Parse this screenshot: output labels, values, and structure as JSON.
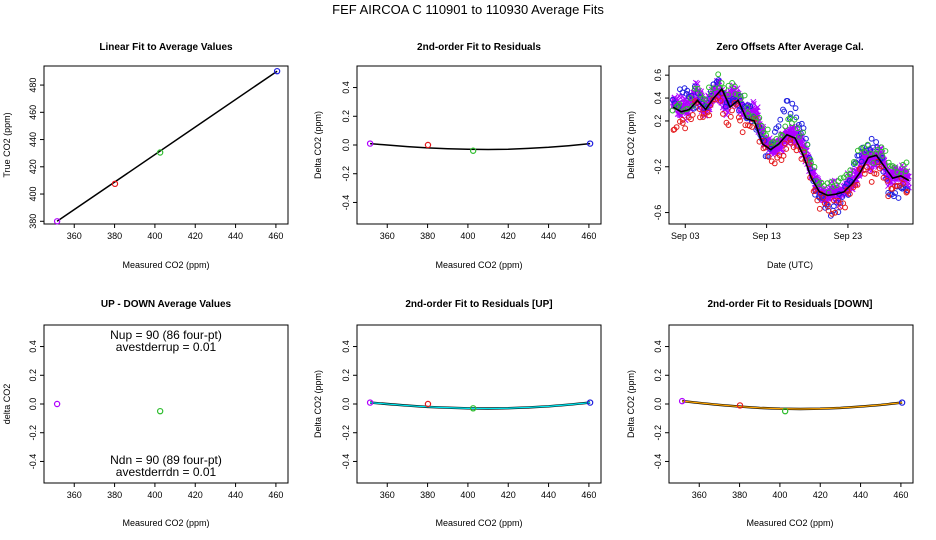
{
  "figure_title": "FEF   AIRCOA C   110901 to 110930   Average Fits",
  "colors": {
    "black": "#000000",
    "red": "#e41a1c",
    "green": "#2ebd2e",
    "blue": "#1f1fe0",
    "purple": "#b000ff",
    "cyan": "#00e5ee",
    "orange": "#ffa500"
  },
  "chart_data": [
    {
      "id": "p1",
      "type": "scatter",
      "title": "Linear Fit to Average Values",
      "xlabel": "Measured CO2 (ppm)",
      "ylabel": "True CO2 (ppm)",
      "xlim": [
        345,
        466
      ],
      "ylim": [
        378,
        494
      ],
      "xticks": [
        360,
        380,
        400,
        420,
        440,
        460
      ],
      "yticks": [
        380,
        400,
        420,
        440,
        460,
        480
      ],
      "points": [
        {
          "x": 351.5,
          "y": 380.0,
          "color": "purple"
        },
        {
          "x": 380.2,
          "y": 407.5,
          "color": "red"
        },
        {
          "x": 402.6,
          "y": 430.5,
          "color": "green"
        },
        {
          "x": 460.6,
          "y": 490.2,
          "color": "blue"
        }
      ],
      "fit_lines": [
        {
          "color": "black",
          "x": [
            351.5,
            460.6
          ],
          "y": [
            380.0,
            490.2
          ]
        }
      ]
    },
    {
      "id": "p2",
      "type": "scatter",
      "title": "2nd-order Fit to Residuals",
      "xlabel": "Measured CO2 (ppm)",
      "ylabel": "Delta CO2 (ppm)",
      "xlim": [
        345,
        466
      ],
      "ylim": [
        -0.55,
        0.55
      ],
      "xticks": [
        360,
        380,
        400,
        420,
        440,
        460
      ],
      "yticks": [
        -0.4,
        -0.2,
        0.0,
        0.2,
        0.4
      ],
      "yticklabels": [
        "-0.4",
        "-0.2",
        "0.0",
        "0.2",
        "0.4"
      ],
      "points": [
        {
          "x": 351.5,
          "y": 0.01,
          "color": "purple"
        },
        {
          "x": 380.2,
          "y": 0.0,
          "color": "red"
        },
        {
          "x": 402.6,
          "y": -0.04,
          "color": "green"
        },
        {
          "x": 460.6,
          "y": 0.01,
          "color": "blue"
        }
      ],
      "fit_lines": [
        {
          "color": "black",
          "x": [
            351.5,
            360,
            370,
            380,
            390,
            400,
            410,
            420,
            430,
            440,
            450,
            460.6
          ],
          "y": [
            0.01,
            0.0,
            -0.011,
            -0.02,
            -0.026,
            -0.03,
            -0.031,
            -0.029,
            -0.024,
            -0.016,
            -0.005,
            0.01
          ]
        }
      ]
    },
    {
      "id": "p3",
      "type": "scatter",
      "title": "Zero Offsets After Average Cal.",
      "xlabel": "Date (UTC)",
      "ylabel": "Delta CO2 (ppm)",
      "xlim": [
        0,
        30
      ],
      "ylim": [
        -0.7,
        0.68
      ],
      "xticks": [
        2,
        12,
        22
      ],
      "xticklabels": [
        "Sep 03",
        "Sep 13",
        "Sep 23"
      ],
      "yticks": [
        -0.6,
        -0.2,
        0.2,
        0.4,
        0.6
      ],
      "yticklabels": [
        "-0.6",
        "-0.2",
        "0.2",
        "0.4",
        "0.6"
      ],
      "dense_series": [
        {
          "name": "purple",
          "color": "purple",
          "step": 0.06,
          "jitter": 0.07,
          "size": 2.6,
          "cross": true,
          "x": [
            0.5,
            2,
            3.5,
            4.5,
            6,
            7,
            8,
            9.5,
            10.5,
            12,
            13,
            15,
            16,
            17,
            18,
            19,
            20,
            21,
            22,
            23,
            24,
            25,
            26,
            27,
            28,
            29.5
          ],
          "y": [
            0.35,
            0.3,
            0.45,
            0.3,
            0.5,
            0.35,
            0.45,
            0.25,
            0.3,
            0.0,
            -0.05,
            0.1,
            0.05,
            -0.1,
            -0.35,
            -0.45,
            -0.42,
            -0.45,
            -0.35,
            -0.3,
            -0.1,
            -0.15,
            -0.1,
            -0.3,
            -0.25,
            -0.3
          ]
        },
        {
          "name": "blue",
          "color": "blue",
          "step": 0.22,
          "jitter": 0.09,
          "size": 2.4,
          "x": [
            0.5,
            2,
            3.5,
            4.5,
            6,
            7,
            8,
            9.5,
            10.5,
            12,
            13,
            14,
            15,
            16,
            17,
            18,
            19,
            20,
            21,
            22,
            23,
            24,
            25,
            26,
            27,
            28,
            29.5
          ],
          "y": [
            0.4,
            0.45,
            0.4,
            0.3,
            0.55,
            0.35,
            0.4,
            0.3,
            0.25,
            -0.05,
            0.1,
            0.3,
            0.35,
            0.2,
            -0.05,
            -0.45,
            -0.55,
            -0.6,
            -0.5,
            -0.4,
            -0.2,
            -0.05,
            0.05,
            -0.15,
            -0.4,
            -0.4,
            -0.45
          ]
        },
        {
          "name": "red",
          "color": "red",
          "step": 0.26,
          "jitter": 0.07,
          "size": 2.4,
          "x": [
            0.5,
            2,
            3.5,
            4.5,
            6,
            7,
            8,
            9.5,
            10.5,
            12,
            13,
            15,
            16,
            17,
            18,
            19,
            20,
            21,
            22,
            23,
            24,
            25,
            26,
            27,
            28,
            29.5
          ],
          "y": [
            0.2,
            0.15,
            0.35,
            0.2,
            0.45,
            0.2,
            0.35,
            0.1,
            0.2,
            -0.05,
            -0.15,
            0.0,
            -0.05,
            -0.15,
            -0.45,
            -0.5,
            -0.55,
            -0.55,
            -0.45,
            -0.35,
            -0.2,
            -0.3,
            -0.15,
            -0.4,
            -0.35,
            -0.4
          ]
        },
        {
          "name": "green",
          "color": "green",
          "step": 0.3,
          "jitter": 0.06,
          "size": 2.4,
          "x": [
            0.5,
            2,
            3.5,
            4.5,
            6,
            7,
            8,
            9.5,
            10.5,
            12,
            13,
            15,
            16,
            17,
            18,
            19,
            20,
            21,
            22,
            23,
            24,
            25,
            26,
            27,
            28,
            29.5
          ],
          "y": [
            0.35,
            0.3,
            0.45,
            0.35,
            0.55,
            0.45,
            0.5,
            0.35,
            0.25,
            0.1,
            0.0,
            0.2,
            0.15,
            -0.05,
            -0.3,
            -0.35,
            -0.38,
            -0.35,
            -0.25,
            -0.15,
            -0.05,
            -0.1,
            -0.05,
            -0.2,
            -0.2,
            -0.25
          ]
        }
      ],
      "fit_lines": [
        {
          "color": "black",
          "width": 1.6,
          "x": [
            0.5,
            1.5,
            2.5,
            3.5,
            4.5,
            5.5,
            6.5,
            7.5,
            8.5,
            9.5,
            10.5,
            11.5,
            12.5,
            13.5,
            14.5,
            15.5,
            16.5,
            17.5,
            18.5,
            19.5,
            20.5,
            21.5,
            22.5,
            23.5,
            24.5,
            25.5,
            26.5,
            27.5,
            28.5,
            29.5
          ],
          "y": [
            0.32,
            0.28,
            0.3,
            0.38,
            0.3,
            0.4,
            0.48,
            0.32,
            0.38,
            0.22,
            0.2,
            0.0,
            -0.05,
            0.0,
            0.08,
            0.05,
            -0.1,
            -0.3,
            -0.42,
            -0.45,
            -0.44,
            -0.42,
            -0.35,
            -0.25,
            -0.12,
            -0.1,
            -0.2,
            -0.3,
            -0.28,
            -0.32
          ]
        }
      ]
    },
    {
      "id": "p4",
      "type": "scatter",
      "title": "UP - DOWN Average Values",
      "xlabel": "Measured CO2 (ppm)",
      "ylabel": "delta CO2",
      "xlim": [
        345,
        466
      ],
      "ylim": [
        -0.55,
        0.55
      ],
      "xticks": [
        360,
        380,
        400,
        420,
        440,
        460
      ],
      "yticks": [
        -0.4,
        -0.2,
        0.0,
        0.2,
        0.4
      ],
      "yticklabels": [
        "-0.4",
        "-0.2",
        "0.0",
        "0.2",
        "0.4"
      ],
      "points": [
        {
          "x": 351.5,
          "y": 0.0,
          "color": "purple"
        },
        {
          "x": 402.6,
          "y": -0.05,
          "color": "green"
        }
      ],
      "fit_lines": [],
      "annotations": {
        "nup": "Nup = 90 (86 four-pt)",
        "avestderrup": "avestderrup =  0.01",
        "ndn": "Ndn = 90 (89 four-pt)",
        "avestderrdn": "avestderrdn =  0.01"
      }
    },
    {
      "id": "p5",
      "type": "scatter",
      "title": "2nd-order Fit to Residuals [UP]",
      "xlabel": "Measured CO2 (ppm)",
      "ylabel": "Delta CO2 (ppm)",
      "xlim": [
        345,
        466
      ],
      "ylim": [
        -0.55,
        0.55
      ],
      "xticks": [
        360,
        380,
        400,
        420,
        440,
        460
      ],
      "yticks": [
        -0.4,
        -0.2,
        0.0,
        0.2,
        0.4
      ],
      "yticklabels": [
        "-0.4",
        "-0.2",
        "0.0",
        "0.2",
        "0.4"
      ],
      "points": [
        {
          "x": 351.5,
          "y": 0.01,
          "color": "purple"
        },
        {
          "x": 380.2,
          "y": 0.0,
          "color": "red"
        },
        {
          "x": 402.6,
          "y": -0.03,
          "color": "green"
        },
        {
          "x": 460.6,
          "y": 0.01,
          "color": "blue"
        }
      ],
      "fit_lines": [
        {
          "color": "black",
          "width": 2.4,
          "x": [
            351.5,
            360,
            370,
            380,
            390,
            400,
            410,
            420,
            430,
            440,
            450,
            460.6
          ],
          "y": [
            0.01,
            0.0,
            -0.011,
            -0.02,
            -0.026,
            -0.03,
            -0.031,
            -0.029,
            -0.024,
            -0.016,
            -0.005,
            0.01
          ]
        },
        {
          "color": "cyan",
          "width": 1.3,
          "x": [
            351.5,
            360,
            370,
            380,
            390,
            400,
            410,
            420,
            430,
            440,
            450,
            460.6
          ],
          "y": [
            0.01,
            0.0,
            -0.011,
            -0.02,
            -0.026,
            -0.03,
            -0.031,
            -0.029,
            -0.024,
            -0.016,
            -0.005,
            0.01
          ]
        }
      ]
    },
    {
      "id": "p6",
      "type": "scatter",
      "title": "2nd-order Fit to Residuals [DOWN]",
      "xlabel": "Measured CO2 (ppm)",
      "ylabel": "Delta CO2 (ppm)",
      "xlim": [
        345,
        466
      ],
      "ylim": [
        -0.55,
        0.55
      ],
      "xticks": [
        360,
        380,
        400,
        420,
        440,
        460
      ],
      "yticks": [
        -0.4,
        -0.2,
        0.0,
        0.2,
        0.4
      ],
      "yticklabels": [
        "-0.4",
        "-0.2",
        "0.0",
        "0.2",
        "0.4"
      ],
      "points": [
        {
          "x": 351.5,
          "y": 0.02,
          "color": "purple"
        },
        {
          "x": 380.2,
          "y": -0.01,
          "color": "red"
        },
        {
          "x": 402.6,
          "y": -0.05,
          "color": "green"
        },
        {
          "x": 460.6,
          "y": 0.01,
          "color": "blue"
        }
      ],
      "fit_lines": [
        {
          "color": "black",
          "width": 2.4,
          "x": [
            351.5,
            360,
            370,
            380,
            390,
            400,
            410,
            420,
            430,
            440,
            450,
            460.6
          ],
          "y": [
            0.02,
            0.008,
            -0.006,
            -0.018,
            -0.027,
            -0.033,
            -0.035,
            -0.033,
            -0.027,
            -0.018,
            -0.006,
            0.01
          ]
        },
        {
          "color": "orange",
          "width": 1.3,
          "x": [
            351.5,
            360,
            370,
            380,
            390,
            400,
            410,
            420,
            430,
            440,
            450,
            460.6
          ],
          "y": [
            0.02,
            0.008,
            -0.006,
            -0.018,
            -0.027,
            -0.033,
            -0.035,
            -0.033,
            -0.027,
            -0.018,
            -0.006,
            0.01
          ]
        }
      ]
    }
  ]
}
